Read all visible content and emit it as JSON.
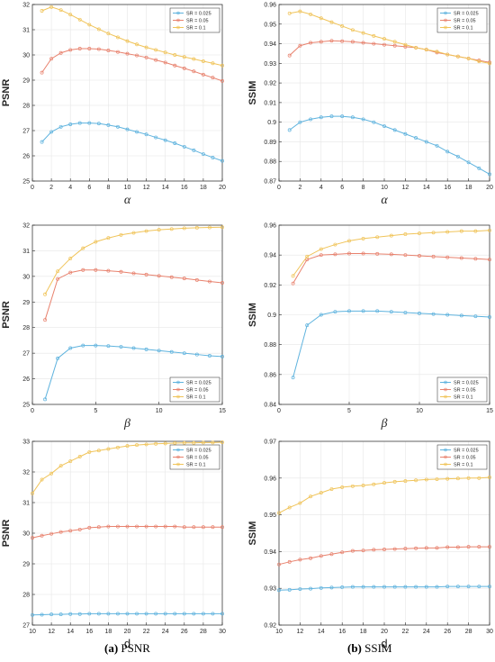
{
  "captions": [
    {
      "tag": "(a)",
      "text": "PSNR"
    },
    {
      "tag": "(b)",
      "text": "SSIM"
    }
  ],
  "colors": {
    "sr025": "#5fb3de",
    "sr05": "#e8826e",
    "sr1": "#f0c45a"
  },
  "chart_data": [
    {
      "type": "line",
      "xlabel": "α",
      "ylabel": "PSNR",
      "xlim": [
        0,
        20
      ],
      "ylim": [
        25,
        32
      ],
      "xticks": [
        0,
        2,
        4,
        6,
        8,
        10,
        12,
        14,
        16,
        18,
        20
      ],
      "yticks": [
        25,
        26,
        27,
        28,
        29,
        30,
        31,
        32
      ],
      "grid": true,
      "legend": "top-right",
      "x": [
        1,
        2,
        3,
        4,
        5,
        6,
        7,
        8,
        9,
        10,
        11,
        12,
        13,
        14,
        15,
        16,
        17,
        18,
        19,
        20
      ],
      "series": [
        {
          "name": "SR = 0.025",
          "values": [
            26.55,
            26.95,
            27.15,
            27.25,
            27.3,
            27.3,
            27.28,
            27.22,
            27.15,
            27.05,
            26.95,
            26.85,
            26.73,
            26.62,
            26.5,
            26.36,
            26.22,
            26.07,
            25.93,
            25.8
          ]
        },
        {
          "name": "SR = 0.05",
          "values": [
            29.3,
            29.85,
            30.08,
            30.2,
            30.25,
            30.25,
            30.23,
            30.18,
            30.12,
            30.05,
            29.98,
            29.9,
            29.8,
            29.7,
            29.58,
            29.47,
            29.35,
            29.22,
            29.1,
            28.97
          ]
        },
        {
          "name": "SR = 0.1",
          "values": [
            31.75,
            31.9,
            31.78,
            31.6,
            31.4,
            31.2,
            31.02,
            30.85,
            30.7,
            30.55,
            30.42,
            30.3,
            30.2,
            30.1,
            30.0,
            29.92,
            29.84,
            29.75,
            29.67,
            29.58
          ]
        }
      ]
    },
    {
      "type": "line",
      "xlabel": "α",
      "ylabel": "SSIM",
      "xlim": [
        0,
        20
      ],
      "ylim": [
        0.87,
        0.96
      ],
      "xticks": [
        0,
        2,
        4,
        6,
        8,
        10,
        12,
        14,
        16,
        18,
        20
      ],
      "yticks": [
        0.87,
        0.88,
        0.89,
        0.9,
        0.91,
        0.92,
        0.93,
        0.94,
        0.95,
        0.96
      ],
      "grid": true,
      "legend": "top-right",
      "x": [
        1,
        2,
        3,
        4,
        5,
        6,
        7,
        8,
        9,
        10,
        11,
        12,
        13,
        14,
        15,
        16,
        17,
        18,
        19,
        20
      ],
      "series": [
        {
          "name": "SR = 0.025",
          "values": [
            0.896,
            0.9,
            0.9015,
            0.9025,
            0.903,
            0.903,
            0.9025,
            0.9015,
            0.9,
            0.898,
            0.896,
            0.894,
            0.892,
            0.89,
            0.888,
            0.885,
            0.8825,
            0.8795,
            0.8765,
            0.8735
          ]
        },
        {
          "name": "SR = 0.05",
          "values": [
            0.934,
            0.939,
            0.9405,
            0.941,
            0.9415,
            0.9413,
            0.941,
            0.9405,
            0.94,
            0.9395,
            0.939,
            0.9385,
            0.938,
            0.937,
            0.9355,
            0.9345,
            0.9335,
            0.9325,
            0.9315,
            0.9305
          ]
        },
        {
          "name": "SR = 0.1",
          "values": [
            0.9555,
            0.9565,
            0.955,
            0.953,
            0.951,
            0.949,
            0.947,
            0.9455,
            0.944,
            0.9425,
            0.941,
            0.9395,
            0.938,
            0.937,
            0.936,
            0.9345,
            0.9335,
            0.9325,
            0.931,
            0.93
          ]
        }
      ]
    },
    {
      "type": "line",
      "xlabel": "β",
      "ylabel": "PSNR",
      "xlim": [
        0,
        15
      ],
      "ylim": [
        25,
        32
      ],
      "xticks": [
        0,
        5,
        10,
        15
      ],
      "yticks": [
        25,
        26,
        27,
        28,
        29,
        30,
        31,
        32
      ],
      "grid": true,
      "legend": "bottom-right",
      "x": [
        1,
        2,
        3,
        4,
        5,
        6,
        7,
        8,
        9,
        10,
        11,
        12,
        13,
        14,
        15
      ],
      "series": [
        {
          "name": "SR = 0.025",
          "values": [
            25.2,
            26.8,
            27.2,
            27.3,
            27.3,
            27.28,
            27.25,
            27.2,
            27.15,
            27.1,
            27.05,
            27.0,
            26.95,
            26.9,
            26.87
          ]
        },
        {
          "name": "SR = 0.05",
          "values": [
            28.3,
            29.9,
            30.15,
            30.25,
            30.25,
            30.22,
            30.18,
            30.12,
            30.07,
            30.02,
            29.97,
            29.92,
            29.86,
            29.8,
            29.75
          ]
        },
        {
          "name": "SR = 0.1",
          "values": [
            29.3,
            30.2,
            30.7,
            31.1,
            31.35,
            31.5,
            31.62,
            31.7,
            31.77,
            31.82,
            31.85,
            31.88,
            31.9,
            31.91,
            31.92
          ]
        }
      ]
    },
    {
      "type": "line",
      "xlabel": "β",
      "ylabel": "SSIM",
      "xlim": [
        0,
        15
      ],
      "ylim": [
        0.84,
        0.96
      ],
      "xticks": [
        0,
        5,
        10,
        15
      ],
      "yticks": [
        0.84,
        0.86,
        0.88,
        0.9,
        0.92,
        0.94,
        0.96
      ],
      "grid": true,
      "legend": "bottom-right",
      "x": [
        1,
        2,
        3,
        4,
        5,
        6,
        7,
        8,
        9,
        10,
        11,
        12,
        13,
        14,
        15
      ],
      "series": [
        {
          "name": "SR = 0.025",
          "values": [
            0.858,
            0.893,
            0.9,
            0.902,
            0.9025,
            0.9025,
            0.9025,
            0.902,
            0.9015,
            0.901,
            0.9005,
            0.9,
            0.8995,
            0.899,
            0.8985
          ]
        },
        {
          "name": "SR = 0.05",
          "values": [
            0.921,
            0.937,
            0.94,
            0.9405,
            0.941,
            0.941,
            0.9408,
            0.9405,
            0.94,
            0.9395,
            0.939,
            0.9385,
            0.938,
            0.9375,
            0.937
          ]
        },
        {
          "name": "SR = 0.1",
          "values": [
            0.926,
            0.939,
            0.944,
            0.947,
            0.9495,
            0.951,
            0.952,
            0.953,
            0.954,
            0.9545,
            0.955,
            0.9555,
            0.956,
            0.956,
            0.9565
          ]
        }
      ]
    },
    {
      "type": "line",
      "xlabel": "d",
      "ylabel": "PSNR",
      "xlim": [
        10,
        30
      ],
      "ylim": [
        27,
        33
      ],
      "xticks": [
        10,
        12,
        14,
        16,
        18,
        20,
        22,
        24,
        26,
        28,
        30
      ],
      "yticks": [
        27,
        28,
        29,
        30,
        31,
        32,
        33
      ],
      "grid": true,
      "legend": "top-right",
      "x": [
        10,
        11,
        12,
        13,
        14,
        15,
        16,
        17,
        18,
        19,
        20,
        21,
        22,
        23,
        24,
        25,
        26,
        27,
        28,
        29,
        30
      ],
      "series": [
        {
          "name": "SR = 0.025",
          "values": [
            27.33,
            27.34,
            27.35,
            27.35,
            27.36,
            27.36,
            27.37,
            27.37,
            27.37,
            27.37,
            27.37,
            27.37,
            27.37,
            27.37,
            27.37,
            27.37,
            27.37,
            27.37,
            27.37,
            27.37,
            27.37
          ]
        },
        {
          "name": "SR = 0.05",
          "values": [
            29.85,
            29.92,
            29.98,
            30.04,
            30.08,
            30.12,
            30.18,
            30.2,
            30.22,
            30.22,
            30.22,
            30.22,
            30.22,
            30.22,
            30.22,
            30.22,
            30.2,
            30.2,
            30.2,
            30.2,
            30.2
          ]
        },
        {
          "name": "SR = 0.1",
          "values": [
            31.3,
            31.75,
            31.95,
            32.2,
            32.35,
            32.5,
            32.65,
            32.7,
            32.75,
            32.8,
            32.85,
            32.88,
            32.9,
            32.92,
            32.93,
            32.94,
            32.95,
            32.95,
            32.96,
            32.96,
            32.97
          ]
        }
      ]
    },
    {
      "type": "line",
      "xlabel": "d",
      "ylabel": "SSIM",
      "xlim": [
        10,
        30
      ],
      "ylim": [
        0.92,
        0.97
      ],
      "xticks": [
        10,
        12,
        14,
        16,
        18,
        20,
        22,
        24,
        26,
        28,
        30
      ],
      "yticks": [
        0.92,
        0.93,
        0.94,
        0.95,
        0.96,
        0.97
      ],
      "grid": true,
      "legend": "top-right",
      "x": [
        10,
        11,
        12,
        13,
        14,
        15,
        16,
        17,
        18,
        19,
        20,
        21,
        22,
        23,
        24,
        25,
        26,
        27,
        28,
        29,
        30
      ],
      "series": [
        {
          "name": "SR = 0.025",
          "values": [
            0.9295,
            0.9296,
            0.9298,
            0.9299,
            0.9301,
            0.9302,
            0.9303,
            0.9304,
            0.9304,
            0.9304,
            0.9304,
            0.9304,
            0.9304,
            0.9304,
            0.9304,
            0.9304,
            0.9305,
            0.9305,
            0.9305,
            0.9305,
            0.9305
          ]
        },
        {
          "name": "SR = 0.05",
          "values": [
            0.9365,
            0.9372,
            0.9378,
            0.9382,
            0.9388,
            0.9393,
            0.9398,
            0.9402,
            0.9403,
            0.9405,
            0.9406,
            0.9407,
            0.9408,
            0.9409,
            0.941,
            0.941,
            0.9412,
            0.9412,
            0.9413,
            0.9413,
            0.9413
          ]
        },
        {
          "name": "SR = 0.1",
          "values": [
            0.9505,
            0.952,
            0.9532,
            0.955,
            0.956,
            0.957,
            0.9575,
            0.9578,
            0.958,
            0.9583,
            0.9587,
            0.959,
            0.9592,
            0.9594,
            0.9596,
            0.9597,
            0.9598,
            0.9599,
            0.96,
            0.96,
            0.9602
          ]
        }
      ]
    }
  ]
}
